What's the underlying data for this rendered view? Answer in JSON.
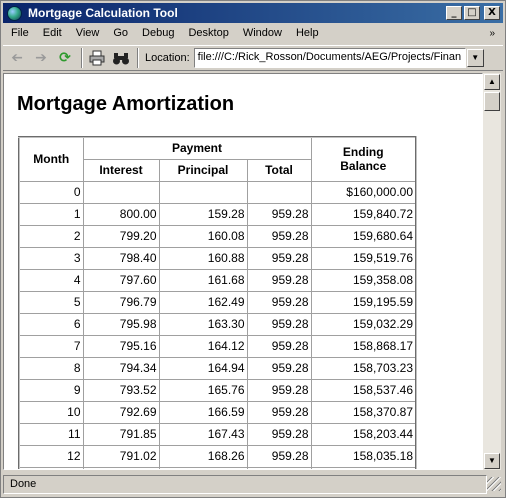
{
  "window": {
    "title": "Mortgage Calculation Tool",
    "buttons": {
      "minimize": "_",
      "maximize": "□",
      "close": "X"
    }
  },
  "menu": {
    "items": [
      "File",
      "Edit",
      "View",
      "Go",
      "Debug",
      "Desktop",
      "Window",
      "Help"
    ],
    "overflow": "»"
  },
  "toolbar": {
    "back_icon": "back-arrow-icon",
    "forward_icon": "forward-arrow-icon",
    "reload_icon": "reload-icon",
    "print_icon": "printer-icon",
    "find_icon": "binoculars-icon",
    "location_label": "Location:",
    "location_value": "file:///C:/Rick_Rosson/Documents/AEG/Projects/Finan",
    "location_dropdown": "▼"
  },
  "page": {
    "title": "Mortgage Amortization"
  },
  "table": {
    "headers": {
      "month": "Month",
      "payment": "Payment",
      "interest": "Interest",
      "principal": "Principal",
      "total": "Total",
      "ending_balance_line1": "Ending",
      "ending_balance_line2": "Balance"
    },
    "rows": [
      {
        "month": "0",
        "interest": "",
        "principal": "",
        "total": "",
        "balance": "$160,000.00"
      },
      {
        "month": "1",
        "interest": "800.00",
        "principal": "159.28",
        "total": "959.28",
        "balance": "159,840.72"
      },
      {
        "month": "2",
        "interest": "799.20",
        "principal": "160.08",
        "total": "959.28",
        "balance": "159,680.64"
      },
      {
        "month": "3",
        "interest": "798.40",
        "principal": "160.88",
        "total": "959.28",
        "balance": "159,519.76"
      },
      {
        "month": "4",
        "interest": "797.60",
        "principal": "161.68",
        "total": "959.28",
        "balance": "159,358.08"
      },
      {
        "month": "5",
        "interest": "796.79",
        "principal": "162.49",
        "total": "959.28",
        "balance": "159,195.59"
      },
      {
        "month": "6",
        "interest": "795.98",
        "principal": "163.30",
        "total": "959.28",
        "balance": "159,032.29"
      },
      {
        "month": "7",
        "interest": "795.16",
        "principal": "164.12",
        "total": "959.28",
        "balance": "158,868.17"
      },
      {
        "month": "8",
        "interest": "794.34",
        "principal": "164.94",
        "total": "959.28",
        "balance": "158,703.23"
      },
      {
        "month": "9",
        "interest": "793.52",
        "principal": "165.76",
        "total": "959.28",
        "balance": "158,537.46"
      },
      {
        "month": "10",
        "interest": "792.69",
        "principal": "166.59",
        "total": "959.28",
        "balance": "158,370.87"
      },
      {
        "month": "11",
        "interest": "791.85",
        "principal": "167.43",
        "total": "959.28",
        "balance": "158,203.44"
      },
      {
        "month": "12",
        "interest": "791.02",
        "principal": "168.26",
        "total": "959.28",
        "balance": "158,035.18"
      },
      {
        "month": "",
        "interest": "",
        "principal": "",
        "total": "",
        "balance": ""
      }
    ]
  },
  "scrollbar": {
    "up": "▲",
    "down": "▼"
  },
  "status": {
    "text": "Done"
  },
  "colors": {
    "title_bar_start": "#0a246a",
    "title_bar_end": "#3a6ea5",
    "chrome": "#d4d0c8",
    "reload_icon": "#2e9a2e"
  }
}
